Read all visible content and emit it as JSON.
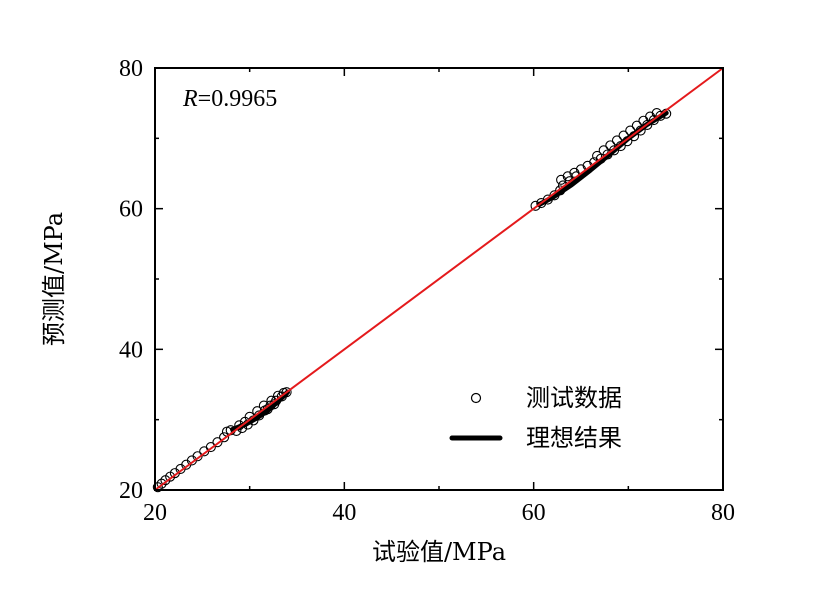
{
  "chart_data": {
    "type": "scatter",
    "title": "",
    "xlabel": "试验值/MPa",
    "ylabel": "预测值/MPa",
    "xlim": [
      20,
      80
    ],
    "ylim": [
      20,
      80
    ],
    "xticks": [
      20,
      40,
      60,
      80
    ],
    "yticks": [
      20,
      40,
      60,
      80
    ],
    "annotation": {
      "prefix": "R",
      "text": "=0.9965"
    },
    "legend_position": "bottom-right",
    "series": [
      {
        "name": "测试数据",
        "kind": "scatter",
        "marker": "open-circle",
        "color": "#000000",
        "points": [
          [
            20.3,
            20.4
          ],
          [
            20.7,
            20.9
          ],
          [
            21.1,
            21.4
          ],
          [
            21.6,
            21.9
          ],
          [
            22.1,
            22.4
          ],
          [
            22.7,
            23.0
          ],
          [
            23.3,
            23.6
          ],
          [
            23.9,
            24.2
          ],
          [
            24.5,
            24.8
          ],
          [
            25.2,
            25.5
          ],
          [
            25.9,
            26.1
          ],
          [
            26.6,
            26.8
          ],
          [
            27.3,
            27.5
          ],
          [
            27.6,
            28.3
          ],
          [
            28.0,
            28.5
          ],
          [
            28.6,
            28.4
          ],
          [
            29.2,
            28.8
          ],
          [
            29.8,
            29.3
          ],
          [
            30.4,
            29.9
          ],
          [
            31.0,
            30.6
          ],
          [
            31.6,
            31.3
          ],
          [
            32.2,
            32.0
          ],
          [
            32.8,
            32.7
          ],
          [
            33.4,
            33.3
          ],
          [
            33.9,
            33.9
          ],
          [
            30.0,
            30.4
          ],
          [
            30.8,
            31.2
          ],
          [
            31.5,
            32.0
          ],
          [
            32.3,
            32.7
          ],
          [
            33.0,
            33.4
          ],
          [
            33.6,
            33.8
          ],
          [
            29.5,
            29.7
          ],
          [
            28.9,
            29.2
          ],
          [
            31.9,
            31.5
          ],
          [
            32.6,
            32.2
          ],
          [
            60.2,
            60.4
          ],
          [
            60.8,
            60.8
          ],
          [
            61.5,
            61.3
          ],
          [
            62.2,
            61.9
          ],
          [
            62.8,
            62.6
          ],
          [
            62.9,
            64.1
          ],
          [
            63.6,
            64.6
          ],
          [
            64.3,
            65.1
          ],
          [
            65.0,
            65.6
          ],
          [
            65.7,
            66.1
          ],
          [
            66.4,
            66.6
          ],
          [
            67.1,
            67.1
          ],
          [
            67.8,
            67.7
          ],
          [
            68.5,
            68.3
          ],
          [
            69.2,
            68.9
          ],
          [
            69.9,
            69.6
          ],
          [
            70.6,
            70.3
          ],
          [
            71.3,
            71.1
          ],
          [
            72.0,
            71.9
          ],
          [
            72.7,
            72.6
          ],
          [
            73.4,
            73.2
          ],
          [
            74.0,
            73.5
          ],
          [
            73.0,
            73.6
          ],
          [
            72.3,
            73.1
          ],
          [
            71.6,
            72.5
          ],
          [
            70.9,
            71.8
          ],
          [
            70.2,
            71.1
          ],
          [
            69.5,
            70.4
          ],
          [
            68.8,
            69.7
          ],
          [
            68.1,
            69.0
          ],
          [
            67.4,
            68.3
          ],
          [
            66.7,
            67.5
          ],
          [
            64.5,
            64.6
          ],
          [
            63.8,
            63.9
          ],
          [
            63.1,
            63.3
          ]
        ]
      },
      {
        "name": "理想结果",
        "kind": "line",
        "color": "#000000",
        "segments": [
          [
            [
              28.2,
              28.6
            ],
            [
              29.5,
              29.3
            ],
            [
              30.7,
              30.2
            ],
            [
              31.9,
              31.3
            ],
            [
              33.0,
              32.6
            ],
            [
              34.0,
              33.9
            ]
          ],
          [
            [
              60.6,
              60.6
            ],
            [
              62.0,
              61.6
            ],
            [
              64.0,
              63.4
            ],
            [
              66.0,
              65.5
            ],
            [
              68.0,
              67.7
            ],
            [
              70.0,
              70.0
            ],
            [
              72.0,
              72.0
            ],
            [
              74.0,
              73.6
            ]
          ]
        ]
      },
      {
        "name": "",
        "kind": "reference-line",
        "color": "#e41a1c",
        "points": [
          [
            20,
            20
          ],
          [
            80,
            80
          ]
        ]
      }
    ]
  }
}
